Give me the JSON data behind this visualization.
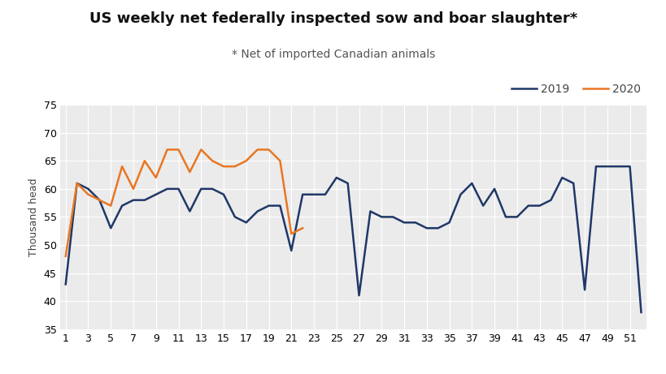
{
  "title": "US weekly net federally inspected sow and boar slaughter*",
  "subtitle": "* Net of imported Canadian animals",
  "ylabel": "Thousand head",
  "bg_color": "#ffffff",
  "plot_bg_color": "#ebebeb",
  "grid_color": "#ffffff",
  "line_2019_color": "#1f3868",
  "line_2020_color": "#e87722",
  "weeks_2019": [
    1,
    2,
    3,
    4,
    5,
    6,
    7,
    8,
    9,
    10,
    11,
    12,
    13,
    14,
    15,
    16,
    17,
    18,
    19,
    20,
    21,
    22,
    23,
    24,
    25,
    26,
    27,
    28,
    29,
    30,
    31,
    32,
    33,
    34,
    35,
    36,
    37,
    38,
    39,
    40,
    41,
    42,
    43,
    44,
    45,
    46,
    47,
    48,
    49,
    50,
    51,
    52
  ],
  "data_2019": [
    43,
    61,
    60,
    58,
    53,
    57,
    58,
    58,
    59,
    60,
    60,
    56,
    60,
    60,
    59,
    55,
    54,
    56,
    57,
    57,
    49,
    59,
    59,
    59,
    62,
    61,
    41,
    56,
    55,
    55,
    54,
    54,
    53,
    53,
    54,
    59,
    61,
    57,
    60,
    55,
    55,
    57,
    57,
    58,
    62,
    61,
    42,
    64,
    64,
    64,
    64,
    38
  ],
  "weeks_2020": [
    1,
    2,
    3,
    4,
    5,
    6,
    7,
    8,
    9,
    10,
    11,
    12,
    13,
    14,
    15,
    16,
    17,
    18,
    19,
    20,
    21,
    22
  ],
  "data_2020": [
    48,
    61,
    59,
    58,
    57,
    64,
    60,
    65,
    62,
    67,
    67,
    63,
    67,
    65,
    64,
    64,
    65,
    67,
    67,
    65,
    52,
    53
  ],
  "xlim": [
    0.5,
    52.5
  ],
  "ylim": [
    35,
    75
  ],
  "yticks": [
    35,
    40,
    45,
    50,
    55,
    60,
    65,
    70,
    75
  ],
  "xticks": [
    1,
    3,
    5,
    7,
    9,
    11,
    13,
    15,
    17,
    19,
    21,
    23,
    25,
    27,
    29,
    31,
    33,
    35,
    37,
    39,
    41,
    43,
    45,
    47,
    49,
    51
  ],
  "legend_labels": [
    "2019",
    "2020"
  ],
  "title_fontsize": 13,
  "subtitle_fontsize": 10,
  "ylabel_fontsize": 9,
  "tick_fontsize": 9,
  "line_width": 1.8
}
